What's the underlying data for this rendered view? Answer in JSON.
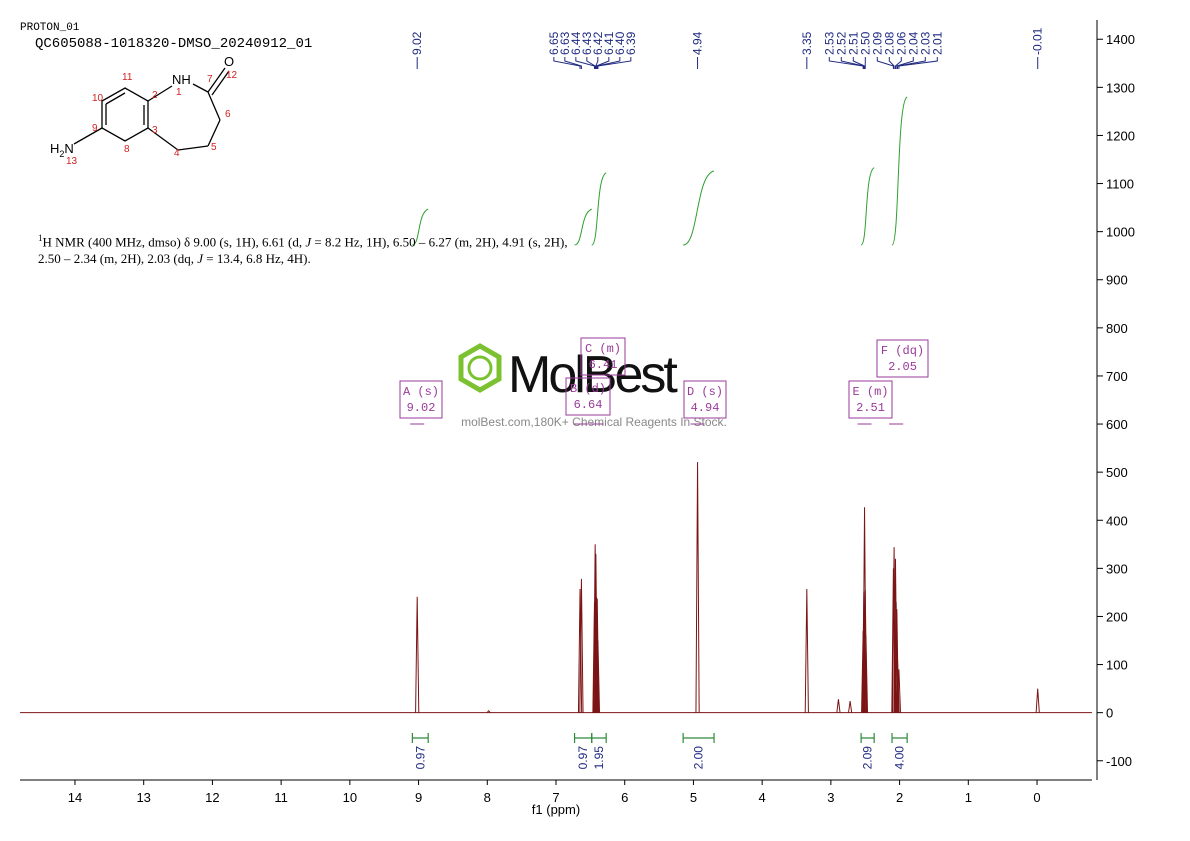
{
  "header": {
    "experiment": "PROTON_01",
    "sample": "QC605088-1018320-DMSO_20240912_01"
  },
  "structure": {
    "atoms": [
      "NH",
      "O"
    ],
    "amine": [
      "H",
      "2",
      "N"
    ],
    "numbers": [
      1,
      2,
      3,
      4,
      5,
      6,
      7,
      8,
      9,
      10,
      11,
      12,
      13
    ]
  },
  "nmr_text": [
    "1",
    "H NMR (400 MHz, dmso) δ 9.00 (s, 1H), 6.61 (d, ",
    "J",
    " = 8.2 Hz, 1H), 6.50 – 6.27 (m, 2H), 4.91 (s, 2H),",
    "2.50 – 2.34 (m, 2H), 2.03 (dq, ",
    "J",
    " = 13.4, 6.8 Hz, 4H)."
  ],
  "watermark": {
    "brand": "MolBest",
    "tagline": "molBest.com,180K+ Chemical Reagents In Stock."
  },
  "chart_data": {
    "type": "nmr",
    "xlabel": "f1 (ppm)",
    "xlim": [
      14.8,
      -0.8
    ],
    "xticks": [
      14,
      13,
      12,
      11,
      10,
      9,
      8,
      7,
      6,
      5,
      4,
      3,
      2,
      1,
      0
    ],
    "ylim": [
      -140,
      1440
    ],
    "yticks": [
      -100,
      0,
      100,
      200,
      300,
      400,
      500,
      600,
      700,
      800,
      900,
      1000,
      1100,
      1200,
      1300,
      1400
    ],
    "color": "#7b1414",
    "peaks": {
      "x": [
        9.02,
        7.98,
        6.65,
        6.63,
        6.44,
        6.43,
        6.42,
        6.41,
        6.4,
        6.39,
        4.94,
        3.35,
        2.89,
        2.72,
        2.53,
        2.52,
        2.51,
        2.5,
        2.49,
        2.09,
        2.08,
        2.06,
        2.05,
        2.04,
        2.03,
        2.01,
        -0.01
      ],
      "values": [
        241,
        4,
        257,
        278,
        230,
        350,
        330,
        240,
        237,
        150,
        521,
        257,
        28,
        24,
        170,
        250,
        427,
        255,
        160,
        300,
        344,
        320,
        230,
        215,
        110,
        90,
        50
      ]
    },
    "peak_labels": [
      9.02,
      6.65,
      6.63,
      6.44,
      6.43,
      6.42,
      6.41,
      {
        "value": 6.4,
        "label": "6.40"
      },
      6.39,
      4.94,
      3.35,
      2.53,
      2.52,
      2.51,
      {
        "value": 2.5,
        "label": "2.50"
      },
      2.09,
      2.08,
      2.06,
      2.04,
      2.03,
      2.01,
      -0.01
    ],
    "multiplets": [
      {
        "label": "A (s)",
        "shift": 9.02
      },
      {
        "label": "B (d)",
        "shift": 6.64
      },
      {
        "label": "C (m)",
        "shift": 6.41
      },
      {
        "label": "D (s)",
        "shift": 4.94
      },
      {
        "label": "E (m)",
        "shift": 2.51
      },
      {
        "label": "F (dq)",
        "shift": 2.05
      }
    ],
    "integrals": {
      "ranges": [
        [
          9.09,
          8.86
        ],
        [
          6.73,
          6.48
        ],
        [
          6.48,
          6.27
        ],
        [
          5.15,
          4.7
        ],
        [
          2.56,
          2.37
        ],
        [
          2.11,
          1.89
        ]
      ],
      "values": [
        0.97,
        0.97,
        1.95,
        2.0,
        2.09,
        4.0
      ],
      "value_labels": [
        "0.97",
        "0.97",
        "1.95",
        "2.00",
        "2.09",
        "4.00"
      ]
    }
  }
}
